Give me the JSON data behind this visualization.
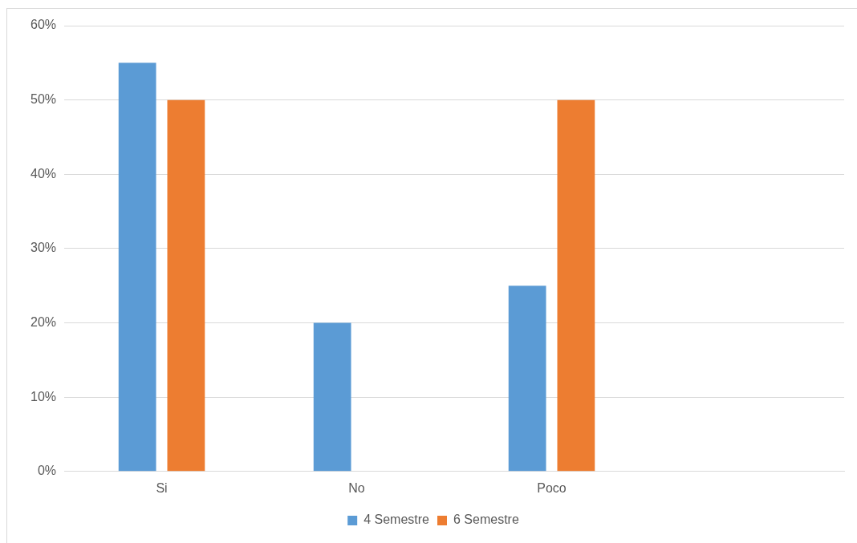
{
  "chart_data": {
    "type": "bar",
    "categories": [
      "Si",
      "No",
      "Poco",
      null
    ],
    "series": [
      {
        "name": "4 Semestre",
        "color": "#5b9bd5",
        "values": [
          55,
          20,
          25,
          null
        ]
      },
      {
        "name": "6 Semestre",
        "color": "#ed7d31",
        "values": [
          50,
          0,
          50,
          null
        ]
      }
    ],
    "ylim": [
      0,
      60
    ],
    "yticks": [
      {
        "value": 0,
        "label": "0%"
      },
      {
        "value": 10,
        "label": "10%"
      },
      {
        "value": 20,
        "label": "20%"
      },
      {
        "value": 30,
        "label": "30%"
      },
      {
        "value": 40,
        "label": "40%"
      },
      {
        "value": 50,
        "label": "50%"
      },
      {
        "value": 60,
        "label": "60%"
      }
    ],
    "grid": "y",
    "legend": "bottom"
  }
}
